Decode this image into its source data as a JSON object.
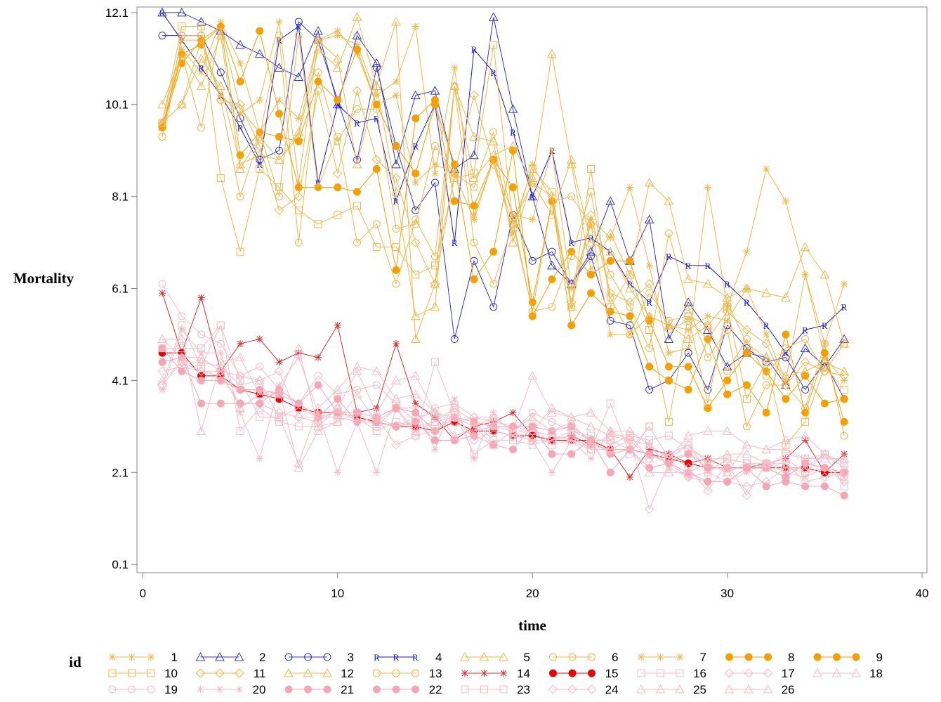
{
  "chart_data": {
    "type": "line",
    "y_label": "Mortality",
    "x_label": "time",
    "legend_title": "id",
    "xlim": [
      -0.3,
      40.25
    ],
    "ylim": [
      -0.08,
      12.22
    ],
    "xticks": [
      0,
      10,
      20,
      30,
      40
    ],
    "yticks": [
      0.1,
      2.1,
      4.1,
      6.1,
      8.1,
      10.1,
      12.1
    ],
    "x": [
      1,
      2,
      3,
      4,
      5,
      6,
      7,
      8,
      9,
      10,
      11,
      12,
      13,
      14,
      15,
      16,
      17,
      18,
      19,
      20,
      21,
      22,
      23,
      24,
      25,
      26,
      27,
      28,
      29,
      30,
      31,
      32,
      33,
      34,
      35,
      36
    ],
    "series": [
      {
        "name": "1",
        "color": "#f0b84a",
        "marker": "star",
        "values": [
          9.6,
          11.3,
          10.8,
          11.9,
          11.0,
          9.5,
          10.2,
          9.8,
          11.5,
          11.6,
          11.4,
          10.3,
          10.6,
          11.8,
          8.6,
          10.9,
          7.7,
          8.9,
          7.3,
          8.8,
          8.0,
          5.7,
          7.6,
          7.2,
          8.3,
          6.6,
          4.7,
          4.8,
          8.3,
          5.7,
          6.9,
          8.7,
          8.0,
          6.4,
          4.9,
          6.2
        ]
      },
      {
        "name": "2",
        "color": "#3535cc",
        "marker": "triangle",
        "values": [
          12.1,
          12.1,
          11.9,
          11.7,
          11.4,
          11.2,
          10.9,
          10.7,
          11.7,
          10.1,
          11.6,
          11.0,
          8.8,
          10.3,
          10.4,
          8.7,
          9.0,
          12.0,
          10.0,
          8.1,
          6.6,
          6.2,
          6.9,
          8.0,
          6.7,
          7.6,
          5.0,
          5.8,
          5.2,
          4.4,
          4.7,
          4.6,
          4.0,
          4.8,
          4.4,
          5.0
        ]
      },
      {
        "name": "3",
        "color": "#3535cc",
        "marker": "circle",
        "values": [
          11.6,
          11.6,
          11.6,
          10.8,
          9.8,
          8.9,
          9.1,
          11.9,
          11.5,
          10.2,
          8.9,
          10.9,
          9.2,
          7.8,
          8.4,
          5.0,
          6.7,
          5.7,
          7.7,
          6.7,
          6.9,
          6.2,
          6.8,
          5.4,
          5.3,
          3.9,
          4.1,
          4.7,
          3.9,
          5.3,
          4.8,
          4.5,
          4.6,
          3.9,
          4.5,
          3.7
        ]
      },
      {
        "name": "4",
        "color": "#1a1acc",
        "marker": "R",
        "values": [
          12.1,
          11.5,
          10.9,
          10.3,
          9.6,
          8.8,
          11.5,
          11.8,
          8.4,
          10.1,
          9.7,
          9.8,
          8.0,
          9.2,
          10.1,
          7.1,
          11.3,
          10.8,
          9.5,
          8.1,
          9.1,
          7.1,
          7.2,
          6.9,
          6.2,
          5.8,
          6.8,
          6.6,
          6.6,
          6.2,
          5.8,
          5.3,
          4.7,
          5.2,
          5.3,
          5.7
        ]
      },
      {
        "name": "5",
        "color": "#f0b84a",
        "marker": "triangle",
        "values": [
          10.1,
          11.2,
          10.5,
          11.6,
          8.7,
          9.4,
          8.9,
          9.4,
          11.3,
          10.9,
          12.0,
          10.5,
          11.9,
          5.0,
          6.2,
          10.5,
          9.4,
          9.3,
          7.1,
          8.5,
          11.2,
          8.8,
          6.5,
          7.3,
          6.4,
          8.4,
          8.0,
          6.3,
          6.2,
          5.9,
          6.1,
          6.0,
          5.9,
          7.0,
          6.4,
          4.9
        ]
      },
      {
        "name": "6",
        "color": "#f0b84a",
        "marker": "circle",
        "values": [
          9.4,
          11.6,
          11.6,
          10.2,
          8.1,
          9.4,
          11.6,
          7.1,
          10.8,
          9.3,
          10.0,
          10.0,
          7.4,
          7.5,
          9.2,
          8.6,
          8.3,
          9.5,
          7.6,
          5.6,
          8.0,
          8.1,
          7.5,
          6.4,
          5.7,
          4.8,
          7.3,
          5.7,
          4.6,
          5.2,
          3.1,
          4.0,
          4.0,
          3.5,
          4.9,
          2.9
        ]
      },
      {
        "name": "7",
        "color": "#f0b84a",
        "marker": "star",
        "values": [
          9.7,
          11.5,
          11.5,
          10.3,
          9.9,
          10.2,
          11.9,
          8.4,
          11.5,
          11.7,
          11.2,
          10.1,
          10.3,
          8.4,
          8.8,
          8.6,
          7.6,
          8.9,
          7.7,
          7.6,
          9.1,
          6.1,
          7.5,
          5.1,
          5.1,
          5.5,
          5.3,
          5.2,
          5.5,
          5.4,
          6.1,
          5.1,
          4.1,
          6.4,
          4.6,
          4.1
        ]
      },
      {
        "name": "8",
        "color": "#f5a000",
        "marker": "filled",
        "values": [
          9.6,
          11.0,
          11.5,
          11.8,
          10.6,
          11.7,
          9.9,
          8.3,
          8.3,
          8.3,
          8.2,
          8.7,
          6.5,
          9.8,
          10.2,
          8.0,
          7.9,
          8.9,
          8.3,
          5.8,
          8.0,
          5.3,
          6.0,
          5.6,
          5.5,
          4.4,
          4.1,
          3.9,
          5.0,
          3.8,
          4.0,
          3.4,
          5.1,
          3.4,
          4.7,
          3.2
        ]
      },
      {
        "name": "9",
        "color": "#f5a000",
        "marker": "filled",
        "values": [
          9.6,
          11.2,
          11.4,
          11.8,
          9.0,
          9.5,
          9.4,
          9.3,
          10.6,
          10.2,
          11.3,
          10.1,
          9.2,
          8.6,
          10.1,
          8.8,
          6.3,
          6.9,
          9.1,
          5.5,
          6.3,
          6.9,
          6.4,
          6.7,
          6.7,
          5.4,
          4.4,
          4.4,
          3.5,
          4.1,
          4.7,
          4.3,
          3.7,
          4.2,
          3.6,
          3.7
        ]
      },
      {
        "name": "10",
        "color": "#f0b84a",
        "marker": "square",
        "values": [
          9.7,
          11.8,
          11.8,
          8.5,
          6.9,
          8.7,
          8.3,
          7.8,
          7.5,
          7.7,
          7.9,
          7.0,
          7.0,
          6.4,
          6.6,
          8.5,
          8.6,
          11.4,
          7.5,
          8.7,
          8.2,
          5.7,
          8.7,
          5.7,
          6.4,
          5.2,
          3.2,
          5.5,
          3.6,
          5.7,
          3.7,
          4.5,
          2.7,
          3.2,
          4.4,
          3.9
        ]
      },
      {
        "name": "11",
        "color": "#f0b84a",
        "marker": "diamond",
        "values": [
          9.7,
          10.1,
          11.5,
          10.2,
          10.1,
          9.2,
          7.8,
          8.1,
          10.4,
          8.6,
          10.4,
          8.9,
          8.5,
          7.1,
          6.2,
          8.6,
          10.3,
          8.8,
          7.5,
          8.4,
          8.1,
          5.8,
          7.7,
          6.0,
          5.8,
          6.2,
          5.2,
          5.4,
          5.0,
          5.6,
          5.2,
          4.9,
          4.0,
          4.5,
          4.3,
          4.2
        ]
      },
      {
        "name": "12",
        "color": "#f0b84a",
        "marker": "triangle",
        "values": [
          9.7,
          10.1,
          11.1,
          10.5,
          8.8,
          9.0,
          8.9,
          9.5,
          11.5,
          11.1,
          8.8,
          10.5,
          8.2,
          5.5,
          5.7,
          10.5,
          8.5,
          9.0,
          9.2,
          8.4,
          7.7,
          8.9,
          7.1,
          6.9,
          6.1,
          5.5,
          5.3,
          5.0,
          5.3,
          5.8,
          4.9,
          4.6,
          4.2,
          4.3,
          4.5,
          4.3
        ]
      },
      {
        "name": "13",
        "color": "#f0b84a",
        "marker": "circle",
        "values": [
          9.4,
          11.2,
          9.6,
          11.8,
          10.0,
          9.5,
          8.1,
          11.6,
          8.3,
          9.4,
          7.1,
          7.5,
          6.2,
          7.6,
          6.8,
          10.5,
          7.1,
          6.2,
          7.5,
          5.6,
          5.7,
          6.8,
          8.2,
          5.9,
          5.1,
          6.0,
          5.4,
          5.5,
          5.3,
          4.3,
          5.0,
          4.2,
          4.8,
          5.0,
          4.3,
          4.9
        ]
      },
      {
        "name": "14",
        "color": "#d83030",
        "marker": "star",
        "values": [
          6.0,
          4.7,
          5.9,
          4.3,
          4.9,
          5.0,
          4.5,
          4.7,
          4.6,
          5.3,
          3.4,
          3.5,
          4.9,
          3.6,
          3.3,
          2.8,
          3.1,
          3.2,
          3.4,
          2.9,
          2.8,
          2.9,
          2.7,
          2.6,
          2.0,
          2.6,
          2.5,
          2.3,
          2.4,
          2.2,
          2.2,
          2.3,
          2.4,
          2.8,
          2.1,
          2.5
        ]
      },
      {
        "name": "15",
        "color": "#ee0000",
        "marker": "filled",
        "values": [
          4.7,
          4.7,
          4.2,
          4.2,
          3.9,
          3.8,
          3.7,
          3.5,
          3.4,
          3.4,
          3.3,
          3.2,
          3.1,
          3.1,
          3.0,
          3.2,
          3.0,
          3.0,
          2.9,
          2.9,
          2.8,
          2.8,
          2.8,
          2.6,
          2.6,
          2.5,
          2.4,
          2.3,
          2.2,
          2.2,
          2.2,
          2.2,
          2.2,
          2.2,
          2.1,
          2.1
        ]
      },
      {
        "name": "16",
        "color": "#f6bcc8",
        "marker": "square",
        "values": [
          4.0,
          5.3,
          4.4,
          5.3,
          3.0,
          3.5,
          3.2,
          3.1,
          3.1,
          3.2,
          3.4,
          3.1,
          3.5,
          2.9,
          4.5,
          3.4,
          2.5,
          2.8,
          2.8,
          3.1,
          2.7,
          2.8,
          2.6,
          3.6,
          2.5,
          3.1,
          2.4,
          2.7,
          2.1,
          2.4,
          2.3,
          2.3,
          2.4,
          2.1,
          2.5,
          1.8
        ]
      },
      {
        "name": "17",
        "color": "#f6bcc8",
        "marker": "diamond",
        "values": [
          4.3,
          4.4,
          4.3,
          4.2,
          3.6,
          3.6,
          3.4,
          3.3,
          3.3,
          3.3,
          3.2,
          3.3,
          3.1,
          3.3,
          3.4,
          3.2,
          3.3,
          3.2,
          3.1,
          3.0,
          2.9,
          2.8,
          2.7,
          2.9,
          2.8,
          1.3,
          2.3,
          2.0,
          1.9,
          1.9,
          1.8,
          1.9,
          2.2,
          2.1,
          2.2,
          1.9
        ]
      },
      {
        "name": "18",
        "color": "#f6bcc8",
        "marker": "triangle",
        "values": [
          5.0,
          5.0,
          3.0,
          4.5,
          4.6,
          3.8,
          3.9,
          2.2,
          3.0,
          3.2,
          3.8,
          3.2,
          3.5,
          3.0,
          3.2,
          3.3,
          3.1,
          2.7,
          3.0,
          4.2,
          3.4,
          3.3,
          3.4,
          3.0,
          3.0,
          2.7,
          2.4,
          2.9,
          3.0,
          3.0,
          2.7,
          2.6,
          2.8,
          2.9,
          2.5,
          2.2
        ]
      },
      {
        "name": "19",
        "color": "#f6bcc8",
        "marker": "circle",
        "values": [
          6.2,
          5.5,
          5.1,
          4.9,
          4.2,
          4.4,
          3.9,
          3.6,
          4.2,
          3.8,
          3.9,
          4.0,
          3.6,
          3.2,
          3.5,
          3.6,
          3.3,
          3.3,
          3.0,
          3.4,
          3.2,
          3.0,
          2.8,
          2.8,
          2.6,
          3.1,
          2.4,
          2.5,
          2.3,
          2.1,
          2.3,
          2.2,
          2.0,
          2.3,
          2.2,
          2.0
        ]
      },
      {
        "name": "20",
        "color": "#f6bcc8",
        "marker": "star",
        "values": [
          3.9,
          5.2,
          4.7,
          4.7,
          3.4,
          2.4,
          4.0,
          4.6,
          3.4,
          2.1,
          3.2,
          2.1,
          3.5,
          3.5,
          2.6,
          3.7,
          2.4,
          3.4,
          2.9,
          2.8,
          2.1,
          2.8,
          2.4,
          3.0,
          2.8,
          2.7,
          2.2,
          2.0,
          2.1,
          1.9,
          2.1,
          2.3,
          2.1,
          2.0,
          2.2,
          2.0
        ]
      },
      {
        "name": "21",
        "color": "#f4a6b4",
        "marker": "filled",
        "values": [
          4.5,
          4.6,
          3.6,
          3.6,
          3.6,
          3.6,
          3.9,
          3.6,
          4.0,
          3.4,
          3.4,
          3.3,
          3.5,
          3.4,
          3.0,
          3.3,
          3.2,
          3.1,
          3.1,
          3.1,
          3.0,
          3.1,
          2.8,
          2.5,
          2.6,
          2.5,
          2.3,
          2.1,
          1.9,
          1.9,
          2.2,
          1.8,
          1.9,
          1.8,
          1.8,
          1.6
        ]
      },
      {
        "name": "22",
        "color": "#f4a6b4",
        "marker": "filled",
        "values": [
          4.8,
          4.3,
          4.1,
          4.1,
          3.9,
          3.9,
          3.8,
          3.6,
          3.3,
          3.7,
          3.2,
          3.2,
          3.1,
          3.2,
          2.8,
          2.8,
          2.9,
          2.7,
          2.6,
          3.1,
          2.5,
          2.5,
          2.8,
          2.1,
          2.6,
          2.2,
          2.3,
          2.5,
          2.2,
          2.2,
          2.2,
          2.2,
          2.0,
          2.3,
          2.2,
          2.1
        ]
      },
      {
        "name": "23",
        "color": "#f6bcc8",
        "marker": "square",
        "values": [
          4.8,
          4.8,
          4.8,
          5.3,
          4.1,
          3.3,
          3.3,
          3.5,
          3.3,
          3.4,
          3.3,
          3.0,
          3.2,
          3.1,
          3.2,
          3.5,
          3.2,
          2.8,
          2.8,
          2.7,
          2.8,
          3.0,
          2.9,
          2.7,
          2.9,
          2.8,
          2.9,
          2.6,
          2.4,
          2.4,
          2.3,
          2.2,
          2.5,
          2.4,
          2.5,
          2.3
        ]
      },
      {
        "name": "24",
        "color": "#f6bcc8",
        "marker": "diamond",
        "values": [
          4.0,
          4.5,
          4.3,
          4.3,
          4.2,
          4.1,
          4.3,
          3.3,
          3.2,
          3.5,
          3.2,
          3.3,
          2.7,
          2.9,
          3.0,
          3.4,
          2.8,
          3.0,
          2.9,
          2.8,
          2.8,
          2.9,
          2.6,
          2.6,
          2.8,
          2.4,
          2.5,
          2.2,
          1.7,
          2.3,
          1.6,
          2.3,
          2.3,
          1.9,
          2.0,
          2.1
        ]
      },
      {
        "name": "25",
        "color": "#f6bcc8",
        "marker": "triangle",
        "values": [
          5.0,
          4.6,
          4.6,
          4.3,
          3.5,
          3.8,
          3.8,
          4.8,
          3.1,
          3.5,
          4.3,
          3.4,
          4.1,
          4.2,
          3.4,
          2.9,
          3.0,
          3.1,
          3.0,
          3.0,
          3.5,
          3.3,
          3.1,
          2.9,
          2.9,
          2.4,
          2.5,
          2.7,
          2.3,
          2.1,
          2.7,
          2.6,
          2.6,
          2.4,
          2.4,
          2.4
        ]
      },
      {
        "name": "26",
        "color": "#f6bcc8",
        "marker": "triangle",
        "values": [
          4.1,
          4.5,
          4.5,
          4.4,
          4.0,
          4.1,
          3.3,
          2.3,
          3.5,
          3.9,
          4.4,
          4.3,
          3.7,
          3.8,
          3.4,
          3.3,
          3.1,
          3.3,
          3.0,
          3.3,
          3.0,
          3.2,
          2.7,
          2.6,
          2.6,
          2.1,
          2.1,
          2.1,
          2.3,
          2.5,
          2.5,
          2.3,
          2.2,
          2.2,
          2.5,
          2.3
        ]
      }
    ]
  }
}
